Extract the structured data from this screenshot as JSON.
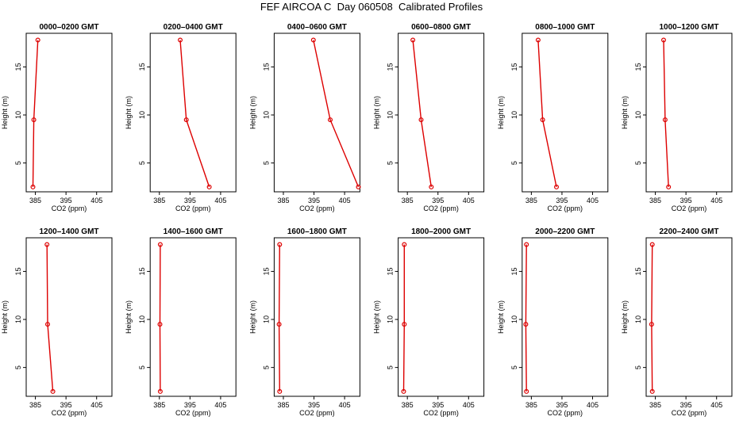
{
  "title": "FEF AIRCOA C  Day 060508  Calibrated Profiles",
  "colors": {
    "series": "#dd0000",
    "axes": "#000000"
  },
  "chart_data": [
    {
      "type": "line",
      "title": "0000–0200 GMT",
      "xlabel": "CO2 (ppm)",
      "ylabel": "Height (m)",
      "xlim": [
        382,
        410
      ],
      "ylim": [
        2,
        18.5
      ],
      "xticks": [
        385,
        395,
        405
      ],
      "yticks": [
        5,
        10,
        15
      ],
      "series": [
        {
          "x": [
            384.2,
            384.5,
            385.8
          ],
          "y": [
            2.5,
            9.5,
            17.8
          ]
        }
      ]
    },
    {
      "type": "line",
      "title": "0200–0400 GMT",
      "xlabel": "CO2 (ppm)",
      "ylabel": "Height (m)",
      "xlim": [
        382,
        410
      ],
      "ylim": [
        2,
        18.5
      ],
      "xticks": [
        385,
        395,
        405
      ],
      "yticks": [
        5,
        10,
        15
      ],
      "series": [
        {
          "x": [
            401.3,
            393.8,
            391.8
          ],
          "y": [
            2.5,
            9.5,
            17.8
          ]
        }
      ]
    },
    {
      "type": "line",
      "title": "0400–0600 GMT",
      "xlabel": "CO2 (ppm)",
      "ylabel": "Height (m)",
      "xlim": [
        382,
        410
      ],
      "ylim": [
        2,
        18.5
      ],
      "xticks": [
        385,
        395,
        405
      ],
      "yticks": [
        5,
        10,
        15
      ],
      "series": [
        {
          "x": [
            409.5,
            400.3,
            394.8
          ],
          "y": [
            2.5,
            9.5,
            17.8
          ]
        }
      ]
    },
    {
      "type": "line",
      "title": "0600–0800 GMT",
      "xlabel": "CO2 (ppm)",
      "ylabel": "Height (m)",
      "xlim": [
        382,
        410
      ],
      "ylim": [
        2,
        18.5
      ],
      "xticks": [
        385,
        395,
        405
      ],
      "yticks": [
        5,
        10,
        15
      ],
      "series": [
        {
          "x": [
            392.8,
            389.5,
            386.8
          ],
          "y": [
            2.5,
            9.5,
            17.8
          ]
        }
      ]
    },
    {
      "type": "line",
      "title": "0800–1000 GMT",
      "xlabel": "CO2 (ppm)",
      "ylabel": "Height (m)",
      "xlim": [
        382,
        410
      ],
      "ylim": [
        2,
        18.5
      ],
      "xticks": [
        385,
        395,
        405
      ],
      "yticks": [
        5,
        10,
        15
      ],
      "series": [
        {
          "x": [
            393.2,
            388.7,
            387.2
          ],
          "y": [
            2.5,
            9.5,
            17.8
          ]
        }
      ]
    },
    {
      "type": "line",
      "title": "1000–1200 GMT",
      "xlabel": "CO2 (ppm)",
      "ylabel": "Height (m)",
      "xlim": [
        382,
        410
      ],
      "ylim": [
        2,
        18.5
      ],
      "xticks": [
        385,
        395,
        405
      ],
      "yticks": [
        5,
        10,
        15
      ],
      "series": [
        {
          "x": [
            389.3,
            388.2,
            387.7
          ],
          "y": [
            2.5,
            9.5,
            17.8
          ]
        }
      ]
    },
    {
      "type": "line",
      "title": "1200–1400 GMT",
      "xlabel": "CO2 (ppm)",
      "ylabel": "Height (m)",
      "xlim": [
        382,
        410
      ],
      "ylim": [
        2,
        18.5
      ],
      "xticks": [
        385,
        395,
        405
      ],
      "yticks": [
        5,
        10,
        15
      ],
      "series": [
        {
          "x": [
            390.7,
            389.0,
            388.8
          ],
          "y": [
            2.5,
            9.5,
            17.8
          ]
        }
      ]
    },
    {
      "type": "line",
      "title": "1400–1600 GMT",
      "xlabel": "CO2 (ppm)",
      "ylabel": "Height (m)",
      "xlim": [
        382,
        410
      ],
      "ylim": [
        2,
        18.5
      ],
      "xticks": [
        385,
        395,
        405
      ],
      "yticks": [
        5,
        10,
        15
      ],
      "series": [
        {
          "x": [
            385.3,
            385.2,
            385.3
          ],
          "y": [
            2.5,
            9.5,
            17.8
          ]
        }
      ]
    },
    {
      "type": "line",
      "title": "1600–1800 GMT",
      "xlabel": "CO2 (ppm)",
      "ylabel": "Height (m)",
      "xlim": [
        382,
        410
      ],
      "ylim": [
        2,
        18.5
      ],
      "xticks": [
        385,
        395,
        405
      ],
      "yticks": [
        5,
        10,
        15
      ],
      "series": [
        {
          "x": [
            383.8,
            383.6,
            383.8
          ],
          "y": [
            2.5,
            9.5,
            17.8
          ]
        }
      ]
    },
    {
      "type": "line",
      "title": "1800–2000 GMT",
      "xlabel": "CO2 (ppm)",
      "ylabel": "Height (m)",
      "xlim": [
        382,
        410
      ],
      "ylim": [
        2,
        18.5
      ],
      "xticks": [
        385,
        395,
        405
      ],
      "yticks": [
        5,
        10,
        15
      ],
      "series": [
        {
          "x": [
            383.8,
            384.0,
            384.0
          ],
          "y": [
            2.5,
            9.5,
            17.8
          ]
        }
      ]
    },
    {
      "type": "line",
      "title": "2000–2200 GMT",
      "xlabel": "CO2 (ppm)",
      "ylabel": "Height (m)",
      "xlim": [
        382,
        410
      ],
      "ylim": [
        2,
        18.5
      ],
      "xticks": [
        385,
        395,
        405
      ],
      "yticks": [
        5,
        10,
        15
      ],
      "series": [
        {
          "x": [
            383.4,
            383.2,
            383.4
          ],
          "y": [
            2.5,
            9.5,
            17.8
          ]
        }
      ]
    },
    {
      "type": "line",
      "title": "2200–2400 GMT",
      "xlabel": "CO2 (ppm)",
      "ylabel": "Height (m)",
      "xlim": [
        382,
        410
      ],
      "ylim": [
        2,
        18.5
      ],
      "xticks": [
        385,
        395,
        405
      ],
      "yticks": [
        5,
        10,
        15
      ],
      "series": [
        {
          "x": [
            384.0,
            383.8,
            384.0
          ],
          "y": [
            2.5,
            9.5,
            17.8
          ]
        }
      ]
    }
  ]
}
